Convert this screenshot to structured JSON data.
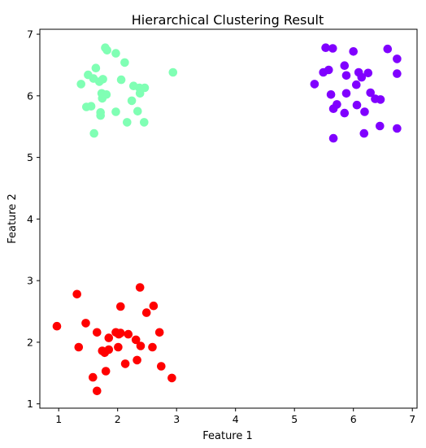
{
  "chart_data": {
    "type": "scatter",
    "title": "Hierarchical Clustering Result",
    "xlabel": "Feature 1",
    "ylabel": "Feature 2",
    "xlim": [
      0.68,
      7.08
    ],
    "ylim": [
      0.93,
      7.08
    ],
    "xticks": [
      1,
      2,
      3,
      4,
      5,
      6,
      7
    ],
    "yticks": [
      1,
      2,
      3,
      4,
      5,
      6,
      7
    ],
    "grid": false,
    "series": [
      {
        "color": "#8000ff",
        "points": [
          [
            5.53,
            6.78
          ],
          [
            5.65,
            6.77
          ],
          [
            6.58,
            6.76
          ],
          [
            6.0,
            6.72
          ],
          [
            6.74,
            6.6
          ],
          [
            5.85,
            6.49
          ],
          [
            6.09,
            6.38
          ],
          [
            5.58,
            6.42
          ],
          [
            5.49,
            6.38
          ],
          [
            6.25,
            6.37
          ],
          [
            6.74,
            6.36
          ],
          [
            5.88,
            6.33
          ],
          [
            6.14,
            6.3
          ],
          [
            5.34,
            6.19
          ],
          [
            6.05,
            6.18
          ],
          [
            5.88,
            6.04
          ],
          [
            5.62,
            6.02
          ],
          [
            6.29,
            6.05
          ],
          [
            6.37,
            5.95
          ],
          [
            6.46,
            5.94
          ],
          [
            5.72,
            5.86
          ],
          [
            6.06,
            5.85
          ],
          [
            5.66,
            5.79
          ],
          [
            6.19,
            5.74
          ],
          [
            5.85,
            5.72
          ],
          [
            6.45,
            5.51
          ],
          [
            6.74,
            5.47
          ],
          [
            6.18,
            5.39
          ],
          [
            5.66,
            5.31
          ]
        ]
      },
      {
        "color": "#80ffb4",
        "points": [
          [
            1.79,
            6.78
          ],
          [
            1.82,
            6.74
          ],
          [
            1.97,
            6.69
          ],
          [
            2.12,
            6.54
          ],
          [
            1.63,
            6.45
          ],
          [
            2.94,
            6.38
          ],
          [
            1.5,
            6.34
          ],
          [
            1.59,
            6.28
          ],
          [
            1.75,
            6.27
          ],
          [
            1.69,
            6.23
          ],
          [
            2.06,
            6.26
          ],
          [
            1.38,
            6.19
          ],
          [
            2.27,
            6.16
          ],
          [
            2.37,
            6.13
          ],
          [
            2.46,
            6.13
          ],
          [
            2.38,
            6.04
          ],
          [
            1.73,
            6.04
          ],
          [
            1.81,
            6.02
          ],
          [
            1.74,
            5.96
          ],
          [
            2.24,
            5.92
          ],
          [
            1.47,
            5.82
          ],
          [
            1.55,
            5.83
          ],
          [
            1.71,
            5.73
          ],
          [
            1.97,
            5.74
          ],
          [
            2.34,
            5.75
          ],
          [
            1.71,
            5.68
          ],
          [
            2.16,
            5.57
          ],
          [
            2.45,
            5.57
          ],
          [
            1.6,
            5.39
          ]
        ]
      },
      {
        "color": "#ff0000",
        "points": [
          [
            2.38,
            2.89
          ],
          [
            1.31,
            2.78
          ],
          [
            2.05,
            2.58
          ],
          [
            2.61,
            2.59
          ],
          [
            2.49,
            2.48
          ],
          [
            0.97,
            2.26
          ],
          [
            1.46,
            2.31
          ],
          [
            1.65,
            2.16
          ],
          [
            1.97,
            2.16
          ],
          [
            2.02,
            2.13
          ],
          [
            2.05,
            2.15
          ],
          [
            2.18,
            2.13
          ],
          [
            2.71,
            2.16
          ],
          [
            1.85,
            2.07
          ],
          [
            2.31,
            2.04
          ],
          [
            1.34,
            1.92
          ],
          [
            2.01,
            1.92
          ],
          [
            2.39,
            1.94
          ],
          [
            2.59,
            1.92
          ],
          [
            1.74,
            1.86
          ],
          [
            1.78,
            1.83
          ],
          [
            1.85,
            1.88
          ],
          [
            2.33,
            1.71
          ],
          [
            2.13,
            1.65
          ],
          [
            2.74,
            1.61
          ],
          [
            1.8,
            1.53
          ],
          [
            1.58,
            1.43
          ],
          [
            2.92,
            1.42
          ],
          [
            1.65,
            1.21
          ]
        ]
      }
    ]
  }
}
